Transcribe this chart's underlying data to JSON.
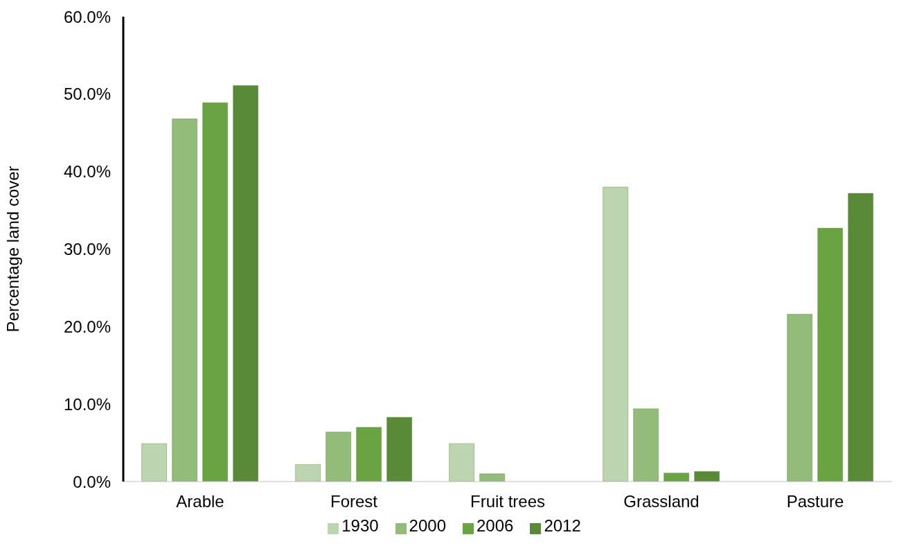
{
  "chart_data": {
    "type": "bar",
    "ylabel": "Percentage land cover",
    "categories": [
      "Arable",
      "Forest",
      "Fruit trees",
      "Grassland",
      "Pasture"
    ],
    "series": [
      {
        "name": "1930",
        "color": "#bcd5b0",
        "values": [
          4.9,
          2.2,
          4.9,
          38.0,
          0
        ]
      },
      {
        "name": "2000",
        "color": "#93bb7a",
        "values": [
          46.8,
          6.4,
          1.0,
          9.4,
          21.6
        ]
      },
      {
        "name": "2006",
        "color": "#6aa442",
        "values": [
          48.9,
          7.0,
          0,
          1.1,
          32.7
        ]
      },
      {
        "name": "2012",
        "color": "#588a38",
        "values": [
          51.1,
          8.3,
          0,
          1.3,
          37.2
        ]
      }
    ],
    "ylim": [
      0,
      60
    ],
    "yticks": [
      {
        "value": 0,
        "label": "0.0%"
      },
      {
        "value": 10,
        "label": "10.0%"
      },
      {
        "value": 20,
        "label": "20.0%"
      },
      {
        "value": 30,
        "label": "30.0%"
      },
      {
        "value": 40,
        "label": "40.0%"
      },
      {
        "value": 50,
        "label": "50.0%"
      },
      {
        "value": 60,
        "label": "60.0%"
      }
    ],
    "grid": false,
    "legend": "bottom"
  }
}
